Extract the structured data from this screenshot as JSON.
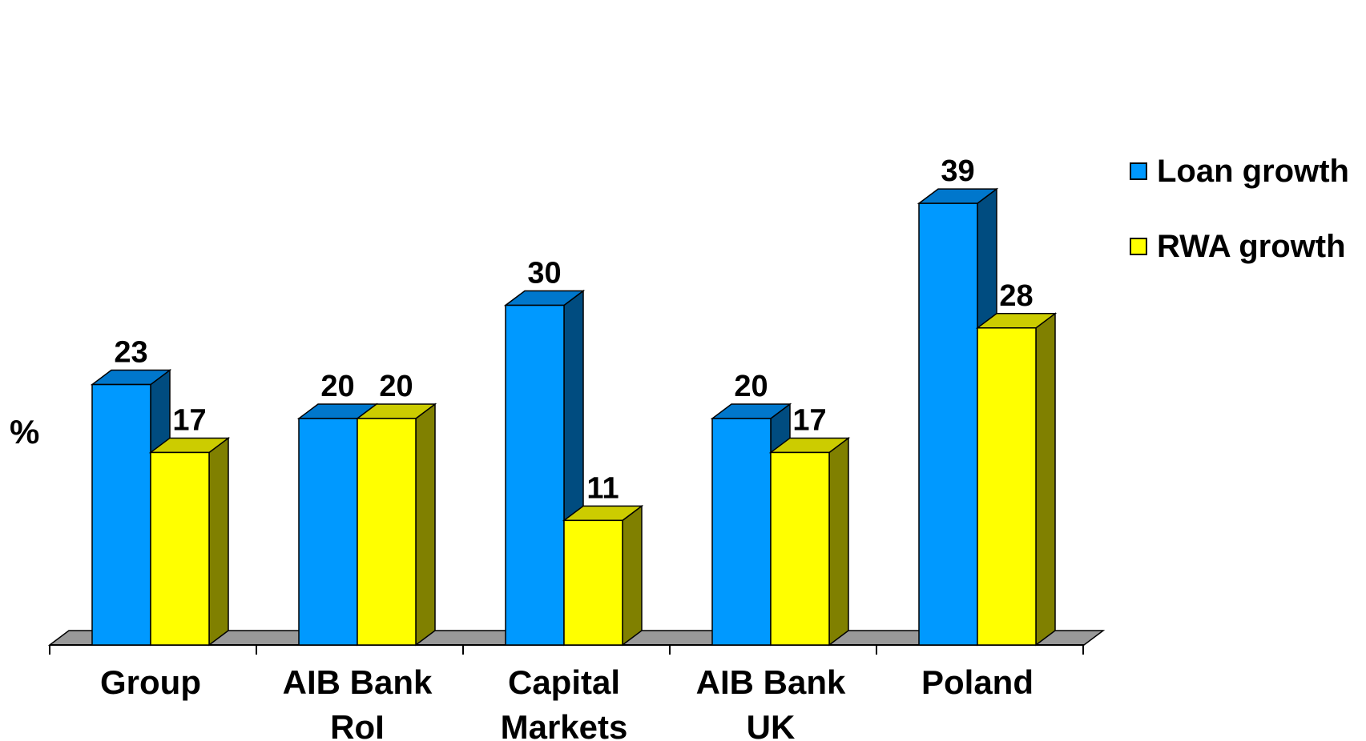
{
  "chart_data": {
    "type": "bar",
    "title": "",
    "xlabel": "",
    "ylabel": "%",
    "ylim": [
      0,
      45
    ],
    "grid": false,
    "style": "3d-clustered-column",
    "legend_position": "right",
    "categories": [
      [
        "Group"
      ],
      [
        "AIB Bank",
        "RoI"
      ],
      [
        "Capital",
        "Markets"
      ],
      [
        "AIB Bank",
        "UK"
      ],
      [
        "Poland"
      ]
    ],
    "series": [
      {
        "name": "Loan growth",
        "values": [
          23,
          20,
          30,
          20,
          39
        ],
        "color": "#0099FF",
        "side_color": "#004C80"
      },
      {
        "name": "RWA growth",
        "values": [
          17,
          20,
          11,
          17,
          28
        ],
        "color": "#FFFF00",
        "side_color": "#808000"
      }
    ],
    "floor_color": "#999999"
  }
}
